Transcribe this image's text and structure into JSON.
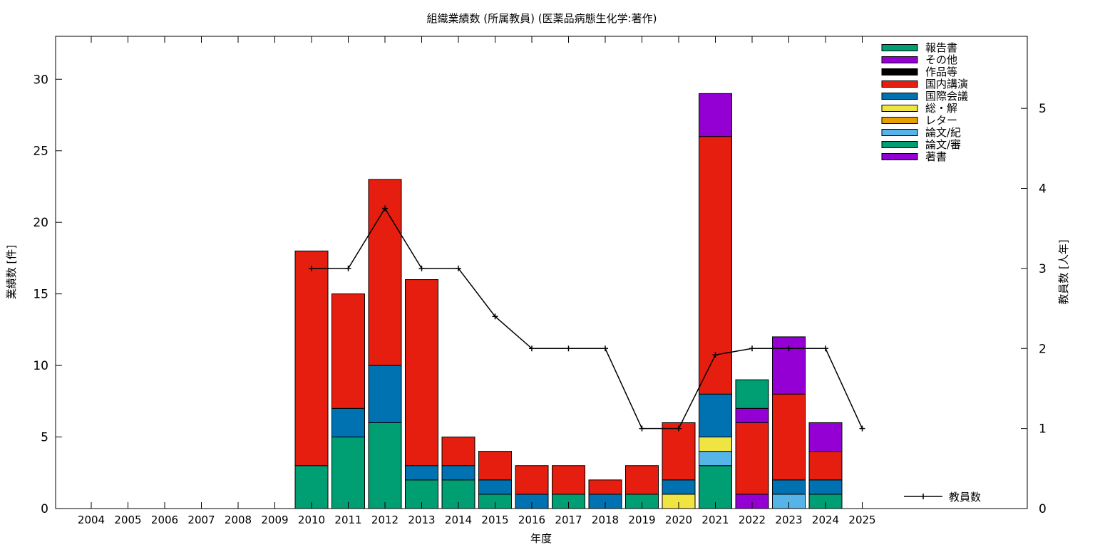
{
  "chart_data": {
    "type": "bar",
    "title": "組織業績数 (所属教員) (医薬品病態生化学:著作)",
    "xlabel": "年度",
    "ylabel": "業績数 [件]",
    "y2label": "教員数 [人年]",
    "ylim": [
      0,
      33
    ],
    "y2lim": [
      0,
      5.9
    ],
    "yticks": [
      0,
      5,
      10,
      15,
      20,
      25,
      30
    ],
    "y2ticks": [
      0,
      1,
      2,
      3,
      4,
      5
    ],
    "stacked": true,
    "grid": false,
    "legend_position": "top-right",
    "categories": [
      "2004",
      "2005",
      "2006",
      "2007",
      "2008",
      "2009",
      "2010",
      "2011",
      "2012",
      "2013",
      "2014",
      "2015",
      "2016",
      "2017",
      "2018",
      "2019",
      "2020",
      "2021",
      "2022",
      "2023",
      "2024",
      "2025"
    ],
    "series": [
      {
        "name": "著書",
        "color": "#9400d3",
        "values": [
          0,
          0,
          0,
          0,
          0,
          0,
          0,
          0,
          0,
          0,
          0,
          0,
          0,
          0,
          0,
          0,
          0,
          0,
          1,
          0,
          0,
          0
        ]
      },
      {
        "name": "論文/審",
        "color": "#009e73",
        "values": [
          0,
          0,
          0,
          0,
          0,
          0,
          3,
          5,
          6,
          2,
          2,
          1,
          0,
          1,
          0,
          1,
          0,
          3,
          0,
          0,
          1,
          0
        ]
      },
      {
        "name": "論文/紀",
        "color": "#56b4e9",
        "values": [
          0,
          0,
          0,
          0,
          0,
          0,
          0,
          0,
          0,
          0,
          0,
          0,
          0,
          0,
          0,
          0,
          0,
          1,
          0,
          1,
          0,
          0
        ]
      },
      {
        "name": "レター",
        "color": "#e69f00",
        "values": [
          0,
          0,
          0,
          0,
          0,
          0,
          0,
          0,
          0,
          0,
          0,
          0,
          0,
          0,
          0,
          0,
          0,
          0,
          0,
          0,
          0,
          0
        ]
      },
      {
        "name": "総・解",
        "color": "#f0e442",
        "values": [
          0,
          0,
          0,
          0,
          0,
          0,
          0,
          0,
          0,
          0,
          0,
          0,
          0,
          0,
          0,
          0,
          1,
          1,
          0,
          0,
          0,
          0
        ]
      },
      {
        "name": "国際会議",
        "color": "#0072b2",
        "values": [
          0,
          0,
          0,
          0,
          0,
          0,
          0,
          2,
          4,
          1,
          1,
          1,
          1,
          0,
          1,
          0,
          1,
          3,
          0,
          1,
          1,
          0
        ]
      },
      {
        "name": "国内講演",
        "color": "#e51e10",
        "values": [
          0,
          0,
          0,
          0,
          0,
          0,
          15,
          8,
          13,
          13,
          2,
          2,
          2,
          2,
          1,
          2,
          4,
          18,
          5,
          6,
          2,
          0
        ]
      },
      {
        "name": "作品等",
        "color": "#000000",
        "values": [
          0,
          0,
          0,
          0,
          0,
          0,
          0,
          0,
          0,
          0,
          0,
          0,
          0,
          0,
          0,
          0,
          0,
          0,
          0,
          0,
          0,
          0
        ]
      },
      {
        "name": "その他",
        "color": "#9400d3",
        "values": [
          0,
          0,
          0,
          0,
          0,
          0,
          0,
          0,
          0,
          0,
          0,
          0,
          0,
          0,
          0,
          0,
          0,
          3,
          1,
          4,
          2,
          0
        ]
      },
      {
        "name": "報告書",
        "color": "#009e73",
        "values": [
          0,
          0,
          0,
          0,
          0,
          0,
          0,
          0,
          0,
          0,
          0,
          0,
          0,
          0,
          0,
          0,
          0,
          0,
          2,
          0,
          0,
          0
        ]
      }
    ],
    "legend_order": [
      "報告書",
      "その他",
      "作品等",
      "国内講演",
      "国際会議",
      "総・解",
      "レター",
      "論文/紀",
      "論文/審",
      "著書"
    ],
    "line_series": {
      "name": "教員数",
      "color": "#000000",
      "axis": "y2",
      "x": [
        "2010",
        "2011",
        "2012",
        "2013",
        "2014",
        "2015",
        "2016",
        "2017",
        "2018",
        "2019",
        "2020",
        "2021",
        "2022",
        "2023",
        "2024",
        "2025"
      ],
      "values": [
        3,
        3,
        3.75,
        3,
        3,
        2.4,
        2,
        2,
        2,
        1,
        1,
        1.92,
        2,
        2,
        2,
        1
      ]
    }
  }
}
